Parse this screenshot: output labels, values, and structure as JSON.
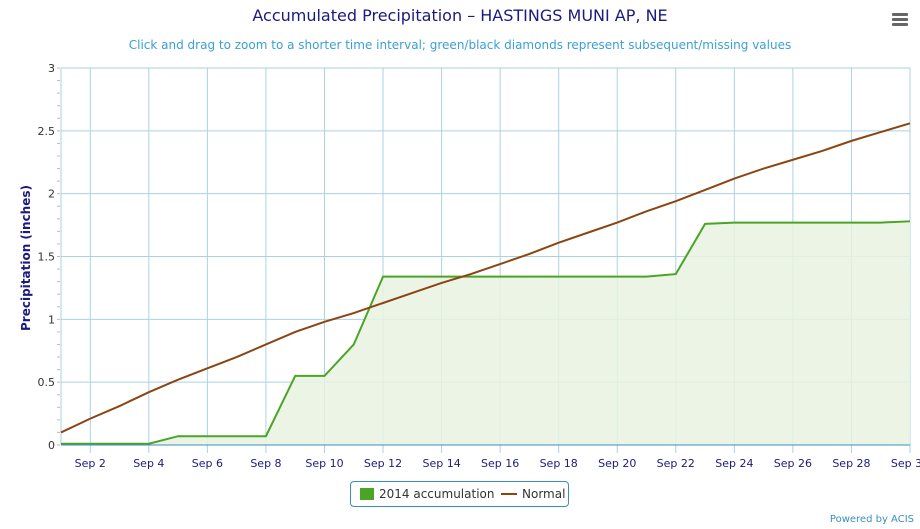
{
  "title": "Accumulated Precipitation – HASTINGS MUNI AP, NE",
  "subtitle": "Click and drag to zoom to a shorter time interval; green/black diamonds represent subsequent/missing values",
  "credit": "Powered by ACIS",
  "menu_icon": "hamburger-menu-icon",
  "colors": {
    "accumulation_line": "#4aa524",
    "accumulation_fill": "#e9f3e1",
    "normal_line": "#8b4513",
    "grid": "#a9d2e6",
    "axis_title": "#1a1a80",
    "title": "#1a1a80",
    "subtitle": "#3aa0d4"
  },
  "chart_data": {
    "type": "line",
    "title": "Accumulated Precipitation – HASTINGS MUNI AP, NE",
    "subtitle": "Click and drag to zoom to a shorter time interval; green/black diamonds represent subsequent/missing values",
    "xlabel": "",
    "ylabel": "Precipitation (inches)",
    "ylim": [
      0,
      3
    ],
    "xlim": [
      1,
      30
    ],
    "y_ticks": [
      0,
      0.5,
      1,
      1.5,
      2,
      2.5,
      3
    ],
    "y_tick_labels": [
      "0",
      "0.5",
      "1",
      "1.5",
      "2",
      "2.5",
      "3"
    ],
    "x_ticks": [
      2,
      4,
      6,
      8,
      10,
      12,
      14,
      16,
      18,
      20,
      22,
      24,
      26,
      28,
      30
    ],
    "x_tick_labels": [
      "Sep 2",
      "Sep 4",
      "Sep 6",
      "Sep 8",
      "Sep 10",
      "Sep 12",
      "Sep 14",
      "Sep 16",
      "Sep 18",
      "Sep 20",
      "Sep 22",
      "Sep 24",
      "Sep 26",
      "Sep 28",
      "Sep 30"
    ],
    "grid": true,
    "legend_position": "bottom-center",
    "x": [
      1,
      2,
      3,
      4,
      5,
      6,
      7,
      8,
      9,
      10,
      11,
      12,
      13,
      14,
      15,
      16,
      17,
      18,
      19,
      20,
      21,
      22,
      23,
      24,
      25,
      26,
      27,
      28,
      29,
      30
    ],
    "series": [
      {
        "name": "2014 accumulation",
        "style": "area",
        "values": [
          0.01,
          0.01,
          0.01,
          0.01,
          0.07,
          0.07,
          0.07,
          0.07,
          0.55,
          0.55,
          0.8,
          1.34,
          1.34,
          1.34,
          1.34,
          1.34,
          1.34,
          1.34,
          1.34,
          1.34,
          1.34,
          1.36,
          1.76,
          1.77,
          1.77,
          1.77,
          1.77,
          1.77,
          1.77,
          1.78
        ]
      },
      {
        "name": "Normal",
        "style": "line",
        "values": [
          0.1,
          0.21,
          0.31,
          0.42,
          0.52,
          0.61,
          0.7,
          0.8,
          0.9,
          0.98,
          1.05,
          1.13,
          1.21,
          1.29,
          1.36,
          1.44,
          1.52,
          1.61,
          1.69,
          1.77,
          1.86,
          1.94,
          2.03,
          2.12,
          2.2,
          2.27,
          2.34,
          2.42,
          2.49,
          2.56
        ]
      }
    ]
  }
}
